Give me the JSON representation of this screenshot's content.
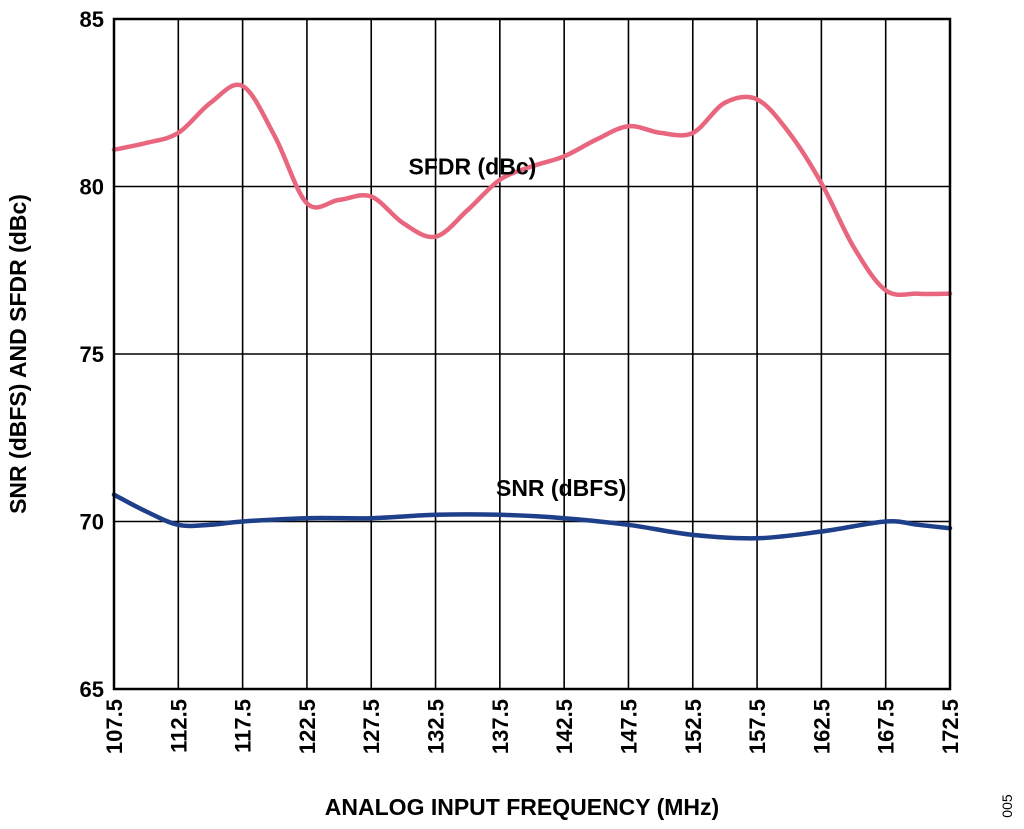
{
  "chart_data": {
    "type": "line",
    "xlabel": "ANALOG INPUT FREQUENCY (MHz)",
    "ylabel": "SNR (dBFS) AND SFDR (dBc)",
    "xlim": [
      107.5,
      172.5
    ],
    "ylim": [
      65,
      85
    ],
    "x_ticks": [
      "107.5",
      "112.5",
      "117.5",
      "122.5",
      "127.5",
      "132.5",
      "137.5",
      "142.5",
      "147.5",
      "152.5",
      "157.5",
      "162.5",
      "167.5",
      "172.5"
    ],
    "y_ticks": [
      "65",
      "70",
      "75",
      "80",
      "85"
    ],
    "grid": true,
    "series": [
      {
        "name": "SFDR (dBc)",
        "color": "#e8677f",
        "x": [
          107.5,
          110,
          112.5,
          115,
          117.5,
          120,
          122.5,
          125,
          127.5,
          130,
          132.5,
          135,
          137.5,
          140,
          142.5,
          145,
          147.5,
          150,
          152.5,
          155,
          157.5,
          160,
          162.5,
          165,
          167.5,
          170,
          172.5
        ],
        "y": [
          81.1,
          81.3,
          81.6,
          82.5,
          83.0,
          81.5,
          79.5,
          79.6,
          79.7,
          78.9,
          78.5,
          79.3,
          80.2,
          80.6,
          80.9,
          81.4,
          81.8,
          81.6,
          81.6,
          82.5,
          82.6,
          81.6,
          80.1,
          78.2,
          76.9,
          76.8,
          76.8
        ]
      },
      {
        "name": "SNR (dBFS)",
        "color": "#1e3f8a",
        "x": [
          107.5,
          110,
          112.5,
          115,
          117.5,
          122.5,
          127.5,
          132.5,
          137.5,
          142.5,
          147.5,
          152.5,
          157.5,
          162.5,
          167.5,
          170,
          172.5
        ],
        "y": [
          70.8,
          70.3,
          69.9,
          69.9,
          70.0,
          70.1,
          70.1,
          70.2,
          70.2,
          70.1,
          69.9,
          69.6,
          69.5,
          69.7,
          70.0,
          69.9,
          69.8
        ]
      }
    ],
    "annotations": [
      {
        "text": "SFDR (dBc)",
        "x": 130.4,
        "y": 80.6
      },
      {
        "text": "SNR (dBFS)",
        "x": 137.2,
        "y": 71.0
      }
    ]
  },
  "figure_id": "005"
}
